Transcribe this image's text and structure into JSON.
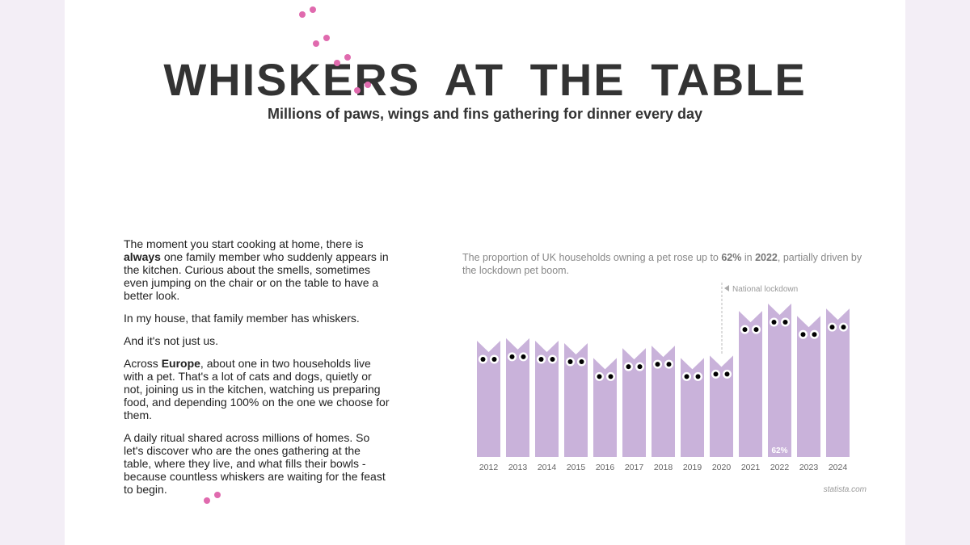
{
  "header": {
    "title": "WHISKERS AT THE TABLE",
    "subtitle": "Millions of paws, wings and fins gathering for dinner every day"
  },
  "article": {
    "paragraphs": [
      [
        "The moment you start cooking at home, there is ",
        {
          "bold": "always"
        },
        " one family member who suddenly appears in the kitchen. Curious about the smells, sometimes even jumping on the chair or on the table to have a better look."
      ],
      [
        "In my house, that family member has whiskers."
      ],
      [
        "And it's not just us."
      ],
      [
        "Across ",
        {
          "bold": "Europe"
        },
        ", about one in two households live with a pet. That's a lot of cats and dogs, quietly or not, joining us in the kitchen, watching us preparing food, and depending 100% on the one we choose for them."
      ],
      [
        "A daily ritual shared across millions of homes. So let's discover who are the ones gathering at the table, where they live, and what fills their bowls - because countless whiskers are waiting for the feast to begin."
      ]
    ]
  },
  "chart_data": {
    "type": "bar",
    "subtitle": [
      "The proportion of UK households owning a pet rose up to ",
      {
        "bold": "62%"
      },
      " in ",
      {
        "bold": "2022"
      },
      ", partially driven by the lockdown pet boom."
    ],
    "categories": [
      "2012",
      "2013",
      "2014",
      "2015",
      "2016",
      "2017",
      "2018",
      "2019",
      "2020",
      "2021",
      "2022",
      "2023",
      "2024"
    ],
    "values": [
      47,
      48,
      47,
      46,
      40,
      44,
      45,
      40,
      41,
      59,
      62,
      57,
      60
    ],
    "value_labels": [
      null,
      null,
      null,
      null,
      null,
      null,
      null,
      null,
      null,
      null,
      "62%",
      null,
      null
    ],
    "color": "#c9b2da",
    "annotation": "National lockdown",
    "source": "statista.com"
  }
}
